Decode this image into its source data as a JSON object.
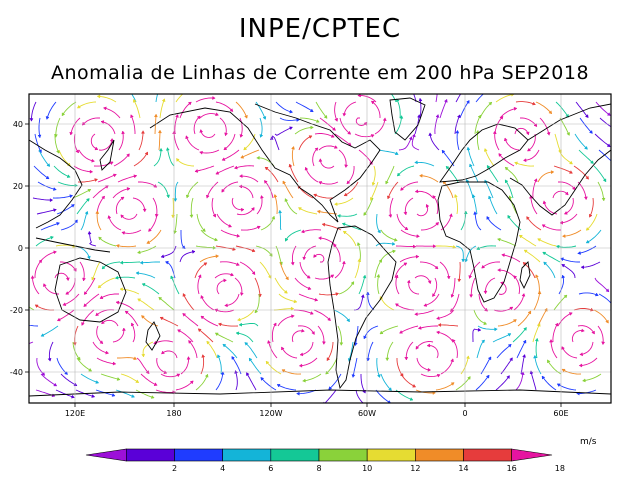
{
  "header": {
    "title": "INPE/CPTEC",
    "subtitle": "Anomalia de Linhas de Corrente em 200 hPa SEP2018"
  },
  "map": {
    "x_ticks": [
      "120E",
      "180",
      "120W",
      "60W",
      "0",
      "60E"
    ],
    "y_ticks": [
      "40",
      "20",
      "0",
      "-20",
      "-40"
    ]
  },
  "colorbar": {
    "unit": "m/s",
    "labels": [
      "2",
      "4",
      "6",
      "8",
      "10",
      "12",
      "14",
      "16",
      "18"
    ],
    "colors": [
      "#9c10d8",
      "#5a00d8",
      "#1f3cff",
      "#14b4d8",
      "#14c896",
      "#8ad23a",
      "#e6dc32",
      "#f08c28",
      "#e63c3c",
      "#e614a0"
    ]
  }
}
